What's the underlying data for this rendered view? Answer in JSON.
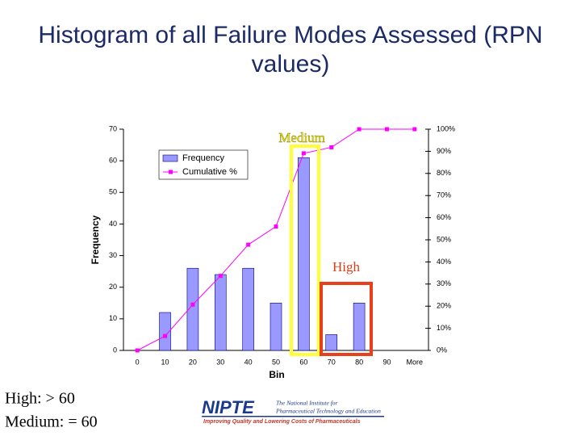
{
  "chart_data": {
    "type": "bar",
    "title": "Histogram of all Failure Modes Assessed (RPN values)",
    "x_label": "Bin",
    "y_label": "Frequency",
    "categories": [
      "0",
      "10",
      "20",
      "30",
      "40",
      "50",
      "60",
      "70",
      "80",
      "90",
      "More"
    ],
    "series": [
      {
        "name": "Frequency",
        "type": "bar",
        "color": "#9999ff",
        "values": [
          0,
          12,
          26,
          24,
          26,
          15,
          61,
          5,
          15,
          0,
          0
        ]
      },
      {
        "name": "Cumulative %",
        "type": "line",
        "color": "#ff00ff",
        "axis": "y2",
        "values": [
          0,
          6.5,
          20.7,
          33.7,
          47.8,
          56,
          89.1,
          91.8,
          100,
          100,
          100
        ]
      }
    ],
    "ylim": [
      0,
      70
    ],
    "yticks": [
      0,
      10,
      20,
      30,
      40,
      50,
      60,
      70
    ],
    "y2lim": [
      0,
      100
    ],
    "y2ticks": [
      {
        "value": 0,
        "label": "0%"
      },
      {
        "value": 10,
        "label": "10%"
      },
      {
        "value": 20,
        "label": "20%"
      },
      {
        "value": 30,
        "label": "30%"
      },
      {
        "value": 40,
        "label": "40%"
      },
      {
        "value": 50,
        "label": "50%"
      },
      {
        "value": 60,
        "label": "60%"
      },
      {
        "value": 70,
        "label": "70%"
      },
      {
        "value": 80,
        "label": "80%"
      },
      {
        "value": 90,
        "label": "90%"
      },
      {
        "value": 100,
        "label": "100%"
      }
    ],
    "legend": "upper left",
    "annotations": [
      "Medium",
      "High"
    ]
  },
  "notes": [
    "High: > 60",
    "Medium: = 60"
  ],
  "logo": {
    "name": "NIPTE",
    "line1": "The National Institute for",
    "line2": "Pharmaceutical Technology and Education",
    "tagline": "Improving Quality and Lowering Costs of Pharmaceuticals"
  }
}
